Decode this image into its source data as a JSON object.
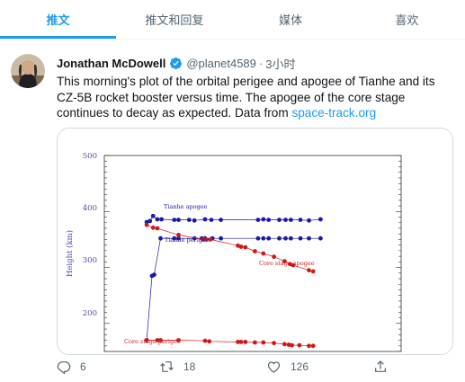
{
  "tabs": [
    {
      "label": "推文",
      "active": true
    },
    {
      "label": "推文和回复",
      "active": false
    },
    {
      "label": "媒体",
      "active": false
    },
    {
      "label": "喜欢",
      "active": false
    }
  ],
  "tweet": {
    "author_name": "Jonathan McDowell",
    "handle": "@planet4589",
    "separator": "·",
    "time": "3小时",
    "text": "This morning's plot of the orbital perigee and apogee of Tianhe and its CZ-5B rocket booster versus time. The apogee of the core stage continues to decay as expected. Data from ",
    "link_text": "space-track.org"
  },
  "actions": {
    "reply_count": "6",
    "retweet_count": "18",
    "like_count": "126"
  },
  "colors": {
    "accent": "#1d9bf0",
    "tianhe": "#1a1aa8",
    "core_stage": "#d01818"
  },
  "chart_data": {
    "type": "scatter",
    "ylabel": "Height (km)",
    "ylim": [
      150,
      500
    ],
    "yticks": [
      "500",
      "400",
      "300",
      "200"
    ],
    "annotations": [
      "Tianhe apogee",
      "Tianhe perigee",
      "Core stage apogee",
      "Core stage perigee"
    ],
    "series": [
      {
        "name": "Tianhe apogee",
        "color": "#1a1aa8",
        "x": [
          0.0,
          0.3,
          0.6,
          1.0,
          1.4,
          2.6,
          3.0,
          4.0,
          4.5,
          5.5,
          6.1,
          7.0,
          10.5,
          11.0,
          11.5,
          12.5,
          13.1,
          13.6,
          14.5,
          15.3,
          16.4
        ],
        "y": [
          381,
          383,
          392,
          386,
          386,
          385,
          385,
          385,
          384,
          386,
          385,
          385,
          385,
          386,
          385,
          385,
          385,
          385,
          385,
          384,
          386
        ]
      },
      {
        "name": "Tianhe perigee",
        "color": "#1a1aa8",
        "x": [
          0.0,
          0.5,
          0.7,
          1.3,
          2.6,
          3.0,
          4.5,
          5.2,
          5.5,
          6.2,
          7.0,
          10.5,
          11.0,
          11.5,
          12.5,
          13.1,
          13.6,
          14.5,
          15.3,
          16.4
        ],
        "y": [
          170,
          285,
          287,
          352,
          352,
          352,
          352,
          352,
          352,
          352,
          352,
          352,
          352,
          352,
          352,
          352,
          352,
          352,
          352,
          352
        ]
      },
      {
        "name": "Core stage apogee",
        "color": "#d01818",
        "x": [
          0.0,
          0.6,
          1.0,
          3.0,
          5.3,
          5.6,
          6.0,
          8.6,
          8.9,
          9.3,
          10.2,
          11.0,
          12.0,
          13.0,
          13.5,
          13.8,
          15.3,
          15.7
        ],
        "y": [
          376,
          371,
          370,
          358,
          350,
          350,
          350,
          339,
          337,
          336,
          329,
          325,
          319,
          311,
          306,
          304,
          295,
          293
        ]
      },
      {
        "name": "Core stage perigee",
        "color": "#d01818",
        "x": [
          0.0,
          1.0,
          1.3,
          3.0,
          5.5,
          5.9,
          8.6,
          8.9,
          9.3,
          10.2,
          11.0,
          12.0,
          13.0,
          13.4,
          13.7,
          14.4,
          15.3,
          15.7
        ],
        "y": [
          170,
          170,
          170,
          170,
          169,
          168,
          167,
          167,
          167,
          166,
          166,
          165,
          163,
          162,
          161,
          161,
          160,
          160
        ]
      }
    ]
  }
}
